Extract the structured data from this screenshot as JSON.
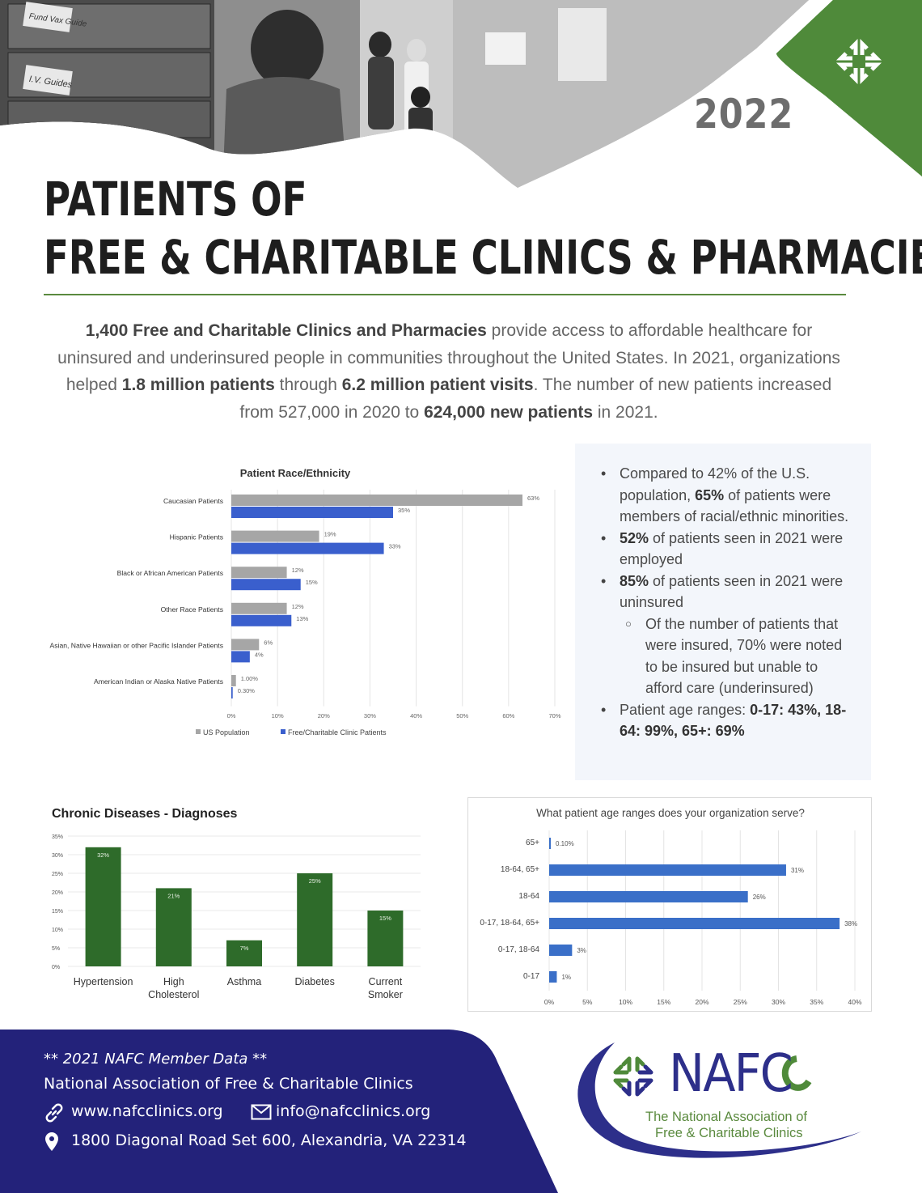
{
  "header": {
    "year": "2022",
    "title_line1": "PATIENTS OF",
    "title_line2": "FREE & CHARITABLE CLINICS & PHARMACIES",
    "photo_labels": [
      "Fund Vax Guide",
      "I.V. Guides"
    ]
  },
  "intro": {
    "p1_bold": "1,400 Free and Charitable Clinics and Pharmacies",
    "p1_rest": " provide access to affordable healthcare for uninsured and underinsured people in communities throughout the United States. In 2021, organizations helped ",
    "p2_bold": "1.8 million patients",
    "p2_rest": " through ",
    "p3_bold": "6.2 million patient visits",
    "p3_rest": ".  The number of new patients increased from 527,000 in 2020 to ",
    "p4_bold": "624,000 new patients",
    "p4_rest": " in 2021."
  },
  "bullets": [
    {
      "pre": "Compared to 42% of the U.S. population, ",
      "bold": "65%",
      "post": " of patients were members of racial/ethnic minorities."
    },
    {
      "pre": "",
      "bold": "52%",
      "post": " of patients seen in 2021 were employed"
    },
    {
      "pre": "",
      "bold": "85%",
      "post": " of patients seen in 2021 were uninsured"
    },
    {
      "sub": true,
      "pre": "Of the number of patients that were insured, 70% were noted to be insured but unable to afford care (underinsured)",
      "bold": "",
      "post": ""
    },
    {
      "pre": "Patient age ranges: ",
      "bold": "0-17: 43%, 18-64: 99%, 65+: 69%",
      "post": ""
    }
  ],
  "chart_data": [
    {
      "type": "bar",
      "orientation": "horizontal",
      "title": "Patient Race/Ethnicity",
      "categories": [
        "Caucasian Patients",
        "Hispanic Patients",
        "Black or African American Patients",
        "Other Race Patients",
        "Asian, Native Hawaiian or other Pacific Islander Patients",
        "American Indian or Alaska Native Patients"
      ],
      "series": [
        {
          "name": "US Population",
          "values": [
            63,
            19,
            12,
            12,
            6,
            1.0
          ],
          "labels": [
            "63%",
            "19%",
            "12%",
            "12%",
            "6%",
            "1.00%"
          ],
          "color": "#a6a6a6"
        },
        {
          "name": "Free/Charitable Clinic Patients",
          "values": [
            35,
            33,
            15,
            13,
            4,
            0.3
          ],
          "labels": [
            "35%",
            "33%",
            "15%",
            "13%",
            "4%",
            "0.30%"
          ],
          "color": "#3a5fcd"
        }
      ],
      "xlim": [
        0,
        70
      ],
      "ticks": [
        "0%",
        "10%",
        "20%",
        "30%",
        "40%",
        "50%",
        "60%",
        "70%"
      ],
      "legend": "bottom",
      "grid": true
    },
    {
      "type": "bar",
      "title": "Chronic Diseases - Diagnoses",
      "categories": [
        "Hypertension",
        "High Cholesterol",
        "Asthma",
        "Diabetes",
        "Current Smoker"
      ],
      "category_lines": [
        [
          "Hypertension"
        ],
        [
          "High",
          "Cholesterol"
        ],
        [
          "Asthma"
        ],
        [
          "Diabetes"
        ],
        [
          "Current",
          "Smoker"
        ]
      ],
      "values": [
        32,
        21,
        7,
        25,
        15
      ],
      "labels": [
        "32%",
        "21%",
        "7%",
        "25%",
        "15%"
      ],
      "ylim": [
        0,
        35
      ],
      "ticks": [
        "0%",
        "5%",
        "10%",
        "15%",
        "20%",
        "25%",
        "30%",
        "35%"
      ],
      "color": "#2e6b2a",
      "grid": true
    },
    {
      "type": "bar",
      "orientation": "horizontal",
      "title": "What patient age ranges does your organization serve?",
      "categories": [
        "65+",
        "18-64, 65+",
        "18-64",
        "0-17, 18-64, 65+",
        "0-17, 18-64",
        "0-17"
      ],
      "values": [
        0.1,
        31,
        26,
        38,
        3,
        1
      ],
      "labels": [
        "0.10%",
        "31%",
        "26%",
        "38%",
        "3%",
        "1%"
      ],
      "xlim": [
        0,
        40
      ],
      "ticks": [
        "0%",
        "5%",
        "10%",
        "15%",
        "20%",
        "25%",
        "30%",
        "35%",
        "40%"
      ],
      "color": "#3a6fc8",
      "grid": true
    }
  ],
  "footer": {
    "note": "** 2021 NAFC Member Data **",
    "org": "National Association of Free & Charitable Clinics",
    "website": "www.nafcclinics.org",
    "email": "info@nafcclinics.org",
    "address": "1800 Diagonal Road Set 600, Alexandria, VA 22314",
    "bg_color": "#23227a"
  },
  "logo": {
    "name": "NAFC",
    "sub1": "The National Association of",
    "sub2": "Free & Charitable Clinics"
  },
  "colors": {
    "green": "#4f8a3a",
    "navy": "#23227a",
    "blue_bar": "#3a5fcd",
    "gray_bar": "#a6a6a6"
  }
}
